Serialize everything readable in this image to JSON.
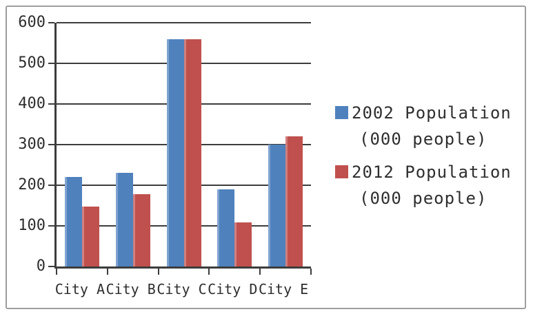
{
  "chart_data": {
    "type": "bar",
    "title": "",
    "xlabel": "",
    "ylabel": "",
    "categories": [
      "City A",
      "City B",
      "City C",
      "City D",
      "City E"
    ],
    "series": [
      {
        "name": "2002 Population (000 people)",
        "legend_lines": [
          "2002 Population",
          "(000 people)"
        ],
        "color": "#4f81bd",
        "values": [
          220,
          230,
          560,
          190,
          300
        ]
      },
      {
        "name": "2012 Population (000 people)",
        "legend_lines": [
          "2012 Population",
          "(000 people)"
        ],
        "color": "#c0504d",
        "values": [
          148,
          178,
          560,
          108,
          320
        ]
      }
    ],
    "ylim": [
      0,
      600
    ],
    "ytick_step": 100,
    "yticks": [
      0,
      100,
      200,
      300,
      400,
      500,
      600
    ],
    "grid": true,
    "legend_position": "right",
    "colors": {
      "axis": "#3c3c3c",
      "gridline": "#3c3c3c",
      "text": "#2e2e2e",
      "frame_border": "#9e9e9e",
      "background": "#ffffff"
    }
  }
}
